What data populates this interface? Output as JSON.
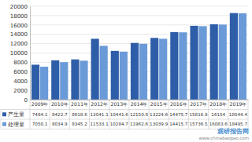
{
  "chart_data": {
    "type": "bar",
    "categories": [
      "2009年",
      "2010年",
      "2011年",
      "2012年",
      "2013年",
      "2014年",
      "2015年",
      "2016年",
      "2017年",
      "2018年",
      "2019年"
    ],
    "series": [
      {
        "name": "产生量",
        "color": "#2f5ea8",
        "values": [
          7484.1,
          8422.7,
          8618.6,
          13041.1,
          10441.6,
          12150.8,
          13224.6,
          14475.7,
          15816.9,
          16154,
          18544.4
        ]
      },
      {
        "name": "处理量",
        "color": "#6a9ad8",
        "values": [
          7050.1,
          8034.9,
          8345.2,
          11533.1,
          10284.7,
          11962.6,
          13039.9,
          14415.7,
          15736.5,
          16083.6,
          18495.7
        ]
      }
    ],
    "ylim": [
      0,
      20000
    ],
    "yticks": [
      0,
      2000,
      4000,
      6000,
      8000,
      10000,
      12000,
      14000,
      16000,
      18000,
      20000
    ],
    "grid": true,
    "annotations": [
      "观研报告网",
      "www.chinabaogao.com"
    ]
  }
}
